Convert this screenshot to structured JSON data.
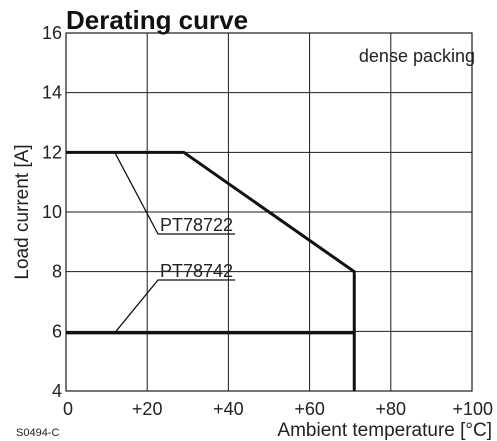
{
  "chart_data": {
    "type": "line",
    "title": "Derating curve",
    "xlabel": "Ambient temperature [°C]",
    "ylabel": "Load current [A]",
    "xlim": [
      0,
      100
    ],
    "ylim": [
      4,
      16
    ],
    "x_ticks": [
      "0",
      "+20",
      "+40",
      "+60",
      "+80",
      "+100"
    ],
    "y_ticks": [
      "4",
      "6",
      "8",
      "10",
      "12",
      "14",
      "16"
    ],
    "grid": true,
    "annotation": "dense packing",
    "figure_code": "S0494-C",
    "series": [
      {
        "name": "PT78722",
        "x": [
          0,
          29,
          71,
          71
        ],
        "y": [
          12,
          12,
          8,
          4
        ]
      },
      {
        "name": "PT78742",
        "x": [
          0,
          70.5,
          71
        ],
        "y": [
          5.95,
          5.95,
          5.95
        ]
      }
    ]
  }
}
